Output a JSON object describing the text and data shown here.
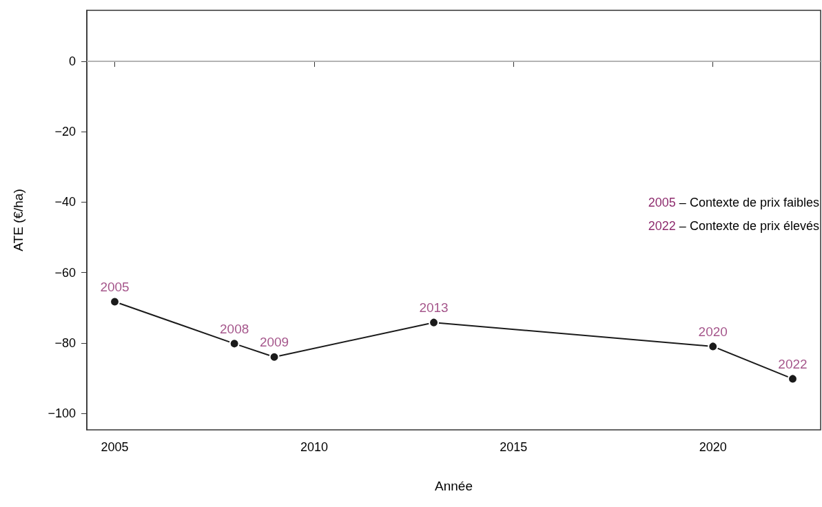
{
  "chart_data": {
    "type": "line",
    "xlabel": "Année",
    "ylabel": "ATE (€/ha)",
    "x": [
      2005,
      2008,
      2009,
      2013,
      2020,
      2022
    ],
    "series": [
      {
        "color": "#1a1a1a",
        "values": [
          -68.3,
          -80.2,
          -84,
          -74.2,
          -81,
          -90.2
        ]
      }
    ],
    "annotations": [
      {
        "text": "2005",
        "x": 2005,
        "y": -68.3
      },
      {
        "text": "2008",
        "x": 2008,
        "y": -80.2
      },
      {
        "text": "2009",
        "x": 2009,
        "y": -84
      },
      {
        "text": "2013",
        "x": 2013,
        "y": -74.2
      },
      {
        "text": "2020",
        "x": 2020,
        "y": -81
      },
      {
        "text": "2022",
        "x": 2022,
        "y": -90.2
      },
      "2005 – Contexte de prix faibles",
      "2022 – Contexte de prix élevés"
    ],
    "ref_lines": [
      {
        "axis": "y",
        "value": 0,
        "color": "#b3b3b3"
      }
    ],
    "xlim": [
      2004.3,
      2022.7
    ],
    "xticks": [
      2005,
      2010,
      2015,
      2020
    ],
    "ylim": [
      -104.7,
      14.5
    ],
    "yticks": [
      -100,
      -80,
      -60,
      -40,
      -20,
      0
    ],
    "marker": "circle",
    "line_style": "solid",
    "grid": false
  }
}
